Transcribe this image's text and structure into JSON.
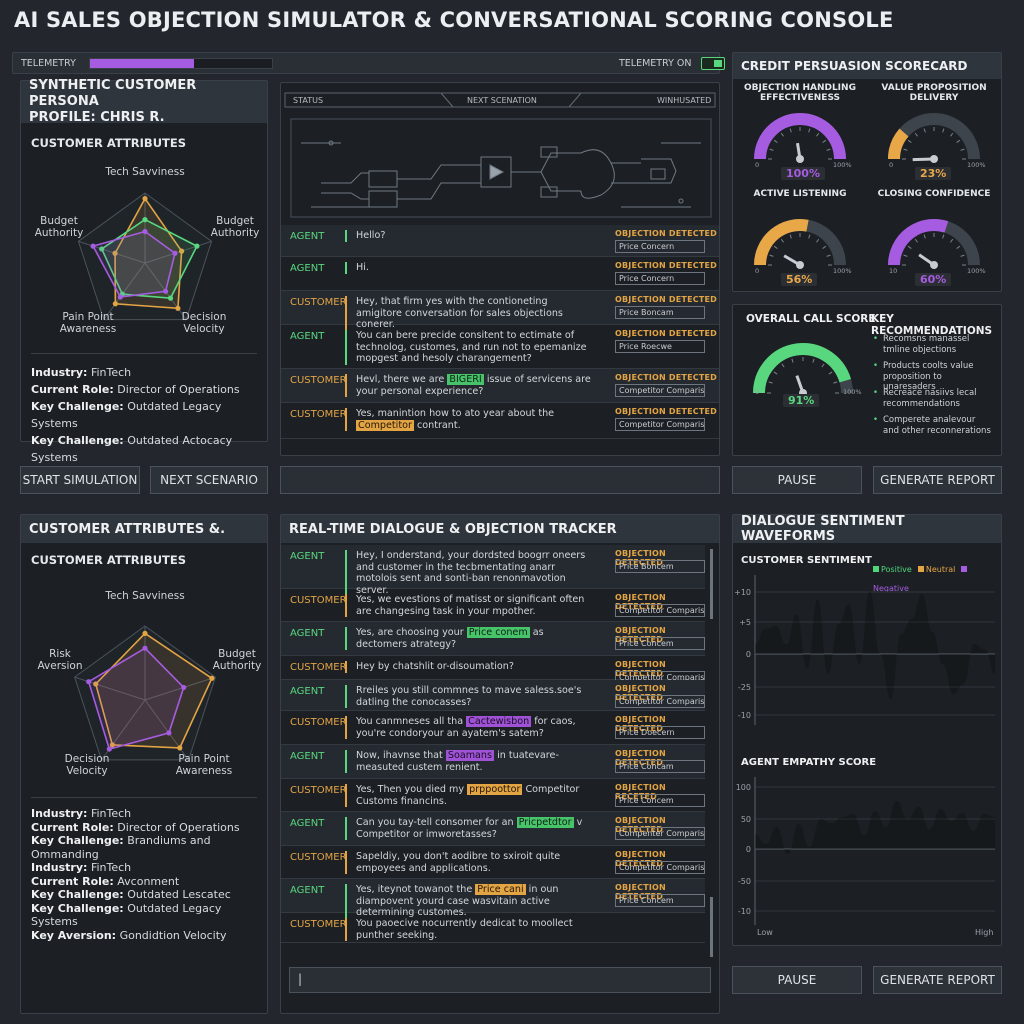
{
  "title": "AI SALES OBJECTION SIMULATOR & CONVERSATIONAL SCORING CONSOLE",
  "telemetry": {
    "left_label": "TELEMETRY",
    "right_label": "TELEMETRY ON",
    "progress": 0.57
  },
  "persona_top": {
    "title_line1": "SYNTHETIC CUSTOMER PERSONA",
    "title_line2": "PROFILE: CHRIS R.",
    "subtitle": "CUSTOMER ATTRIBUTES",
    "axes": [
      "Tech Savviness",
      "Budget Authority",
      "Budget Authority",
      "Decision Velocity",
      "Pain Point Awareness"
    ],
    "axis_labels": {
      "top": "Tech Savviness",
      "left": "Budget\nAuthority",
      "right": "Budget\nAuthority",
      "bl": "Pain Point\nAwareness",
      "br": "Decision\nVelocity"
    },
    "info": [
      {
        "k": "Industry:",
        "v": "FinTech"
      },
      {
        "k": "Current Role:",
        "v": "Director of Operations"
      },
      {
        "k": "Key Challenge:",
        "v": "Outdated Legacy Systems"
      },
      {
        "k": "Key Challenge:",
        "v": "Outdated Actocacy Systems"
      }
    ]
  },
  "flow": {
    "status": "STATUS",
    "next": "NEXT SCENATION",
    "right": "WINHUSATED"
  },
  "dialogue_top": [
    {
      "speaker": "AGENT",
      "text": "Hello?",
      "od": "OBJECTION DETECTED",
      "tag": "Price Concern"
    },
    {
      "speaker": "AGENT",
      "text": "Hi.",
      "od": "OBJECTION DETECTED",
      "tag": "Price Concern"
    },
    {
      "speaker": "CUSTOMER",
      "text": "Hey, that firm yes with the contioneting amigitore conversation for sales objections conerer.",
      "od": "OBJECTION DETECTED",
      "tag": "Price Boncam"
    },
    {
      "speaker": "AGENT",
      "text": "You can bere precide consitent to ectimate of technolog, customes, and run not to epemanize mopgest and hesoly charangement?",
      "od": "OBJECTION DETECTED",
      "tag": "Price Roecwe"
    },
    {
      "speaker": "CUSTOMER",
      "pre": "Hevl, there we are ",
      "hl": "BIGERI",
      "post": " issue of servicens are your personal experience?",
      "od": "OBJECTION DETECTED",
      "tag": "Competitor Comparison"
    },
    {
      "speaker": "CUSTOMER",
      "pre": "Yes, manintion how to ato year about the ",
      "hl": "Competitor",
      "post": " contrant.",
      "od": "OBJECTION DETECTED",
      "tag": "Competitor Comparison"
    }
  ],
  "scorecard": {
    "title": "CREDIT PERSUASION SCORECARD",
    "gauges": [
      {
        "label": "OBJECTION HANDLING\nEFFECTIVENESS",
        "value": "100%",
        "pct": 1.0,
        "color": "#a65ce0",
        "min": "0",
        "max": "100%"
      },
      {
        "label": "VALUE PROPOSITION\nDELIVERY",
        "value": "23%",
        "pct": 0.23,
        "color": "#e8a848",
        "min": "0",
        "max": "100%"
      },
      {
        "label": "ACTIVE LISTENING",
        "value": "56%",
        "pct": 0.56,
        "color": "#e8a848",
        "min": "0",
        "max": "100%"
      },
      {
        "label": "CLOSING CONFIDENCE",
        "value": "60%",
        "pct": 0.6,
        "color": "#a65ce0",
        "min": "10",
        "max": "100%"
      }
    ]
  },
  "overall": {
    "title": "OVERALL CALL SCORE",
    "value": "91%",
    "pct": 0.91,
    "min": "0",
    "max": "100%",
    "rec_title": "KEY RECOMMENDATIONS",
    "recs": [
      "Recomsns manassel tmline objections",
      "Products coolts value proposition to unaresaders",
      "Recreace nasiivs lecal recommendations",
      "Comperete analevour and other reconnerations"
    ]
  },
  "buttons": {
    "start": "START SIMULATION",
    "next": "NEXT SCENARIO",
    "pause": "PAUSE",
    "report": "GENERATE REPORT"
  },
  "persona_bottom": {
    "title": "CUSTOMER ATTRIBUTES &.",
    "subtitle": "CUSTOMER ATTRIBUTES",
    "axis_labels": {
      "top": "Tech Savviness",
      "left": "Risk\nAversion",
      "right": "Budget\nAuthority",
      "bl": "Decision\nVelocity",
      "br": "Pain Point\nAwareness"
    },
    "info": [
      {
        "k": "Industry:",
        "v": "FinTech"
      },
      {
        "k": "Current Role:",
        "v": "Director of Operations"
      },
      {
        "k": "Key Challenge:",
        "v": "Brandiums and Ommanding"
      },
      {
        "k": "Industry:",
        "v": "FinTech"
      },
      {
        "k": "Current Role:",
        "v": "Avconment"
      },
      {
        "k": "Key Challenge:",
        "v": "Outdated Lescatec"
      },
      {
        "k": "Key Challenge:",
        "v": "Outdated Legacy Systems"
      },
      {
        "k": "Key Aversion:",
        "v": "Gondidtion Velocity"
      }
    ]
  },
  "tracker": {
    "title": "REAL-TIME DIALOGUE & OBJECTION TRACKER",
    "rows": [
      {
        "speaker": "AGENT",
        "pre": "Hey, I onderstand, your dordsted boogrr oneers and customer in the tecbmentating anarr motolois sent and sonti-ban renonmavotion server.",
        "od": "OBJECTION DETECTED",
        "tag": "Price Boncem"
      },
      {
        "speaker": "CUSTOMER",
        "pre": "Yes, we evestions of matisst or significant often are changesing task in your mpother.",
        "od": "OBJECTION DETECTED",
        "tag": "Competitor Comparison"
      },
      {
        "speaker": "AGENT",
        "pre": "Yes, are choosing your ",
        "hl": "Price conem",
        "hlc": "g",
        "post": " as dectomers atrategy?",
        "od": "OBJECTION DETECTED",
        "tag": "Price Concem"
      },
      {
        "speaker": "CUSTOMER",
        "pre": "Hey by chatshlit or-disoumation?",
        "od": "OBJECTION DETECTED",
        "tag": "Competitor Comparison"
      },
      {
        "speaker": "AGENT",
        "pre": "Rreiles you still commnes to mave saless.soe's datling the conocasses?",
        "od": "OBJECTION DETECTED",
        "tag": "Competitor Comparison"
      },
      {
        "speaker": "CUSTOMER",
        "pre": "You canmneses all tha ",
        "hl": "Cactewisbon",
        "hlc": "p",
        "post": " for caos, you're condoryour an ayatem's satem?",
        "od": "OBJECTION DETECTED",
        "tag": "Price Doecern"
      },
      {
        "speaker": "AGENT",
        "pre": "Now, ihavnse that ",
        "hl": "Soamans",
        "hlc": "p",
        "post": " in tuatevare-measuted custem renient.",
        "od": "OBJECTION DETECTED",
        "tag": "Price Concam"
      },
      {
        "speaker": "CUSTOMER",
        "pre": "Yes, Then you died my ",
        "hl": "prppoottor",
        "hlc": "o",
        "post": " Competitor Customs financins.",
        "od": "OBJECTION RECETED",
        "tag": "Price Concem"
      },
      {
        "speaker": "AGENT",
        "pre": "Can you tay-tell consomer for an ",
        "hl": "Pricpetdtor",
        "hlc": "g",
        "post": " v Competitor or imworetasses?",
        "od": "OBJECTION DETECTED",
        "tag": "Compenter Comparison"
      },
      {
        "speaker": "CUSTOMER",
        "pre": "Sapeldiy, you don't aodibre to sxiroit quite empoyees and applications.",
        "od": "OBJECTION DETECTED",
        "tag": "Competitor Comparison"
      },
      {
        "speaker": "AGENT",
        "pre": "Yes, iteynot towanot the ",
        "hl": "Price cani",
        "hlc": "o",
        "post": " in oun diampovent yourd case wasvitain active determining customes.",
        "od": "OBJECTION DETECTED",
        "tag": "Price Concem"
      },
      {
        "speaker": "CUSTOMER",
        "pre": "You paoecive nocurrently dedicat to moollect punther seeking.",
        "od": "",
        "tag": ""
      }
    ],
    "input_value": "|"
  },
  "sentiment": {
    "title": "DIALOGUE SENTIMENT WAVEFORMS",
    "sub1": "CUSTOMER SENTIMENT",
    "legend": [
      {
        "name": "Positive",
        "color": "#4fd67a"
      },
      {
        "name": "Neutral",
        "color": "#e3a444"
      },
      {
        "name": "Negative",
        "color": "#a65ce0"
      }
    ],
    "y1": [
      "+10",
      "+5",
      "0",
      "-25",
      "-10"
    ],
    "sub2": "AGENT EMPATHY SCORE",
    "y2": [
      "100",
      "50",
      "0",
      "-50",
      "-10"
    ],
    "x_low": "Low",
    "x_high": "High"
  },
  "colors": {
    "green": "#59d77f",
    "orange": "#e3a444",
    "purple": "#a65ce0"
  }
}
